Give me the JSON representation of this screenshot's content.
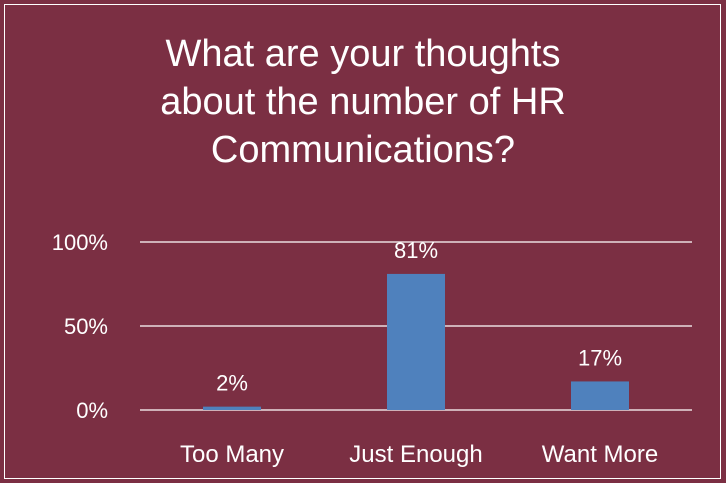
{
  "chart_data": {
    "type": "bar",
    "title_lines": [
      "What are your thoughts",
      "about the number of HR",
      "Communications?"
    ],
    "categories": [
      "Too Many",
      "Just Enough",
      "Want More"
    ],
    "values": [
      2,
      81,
      17
    ],
    "value_labels": [
      "2%",
      "81%",
      "17%"
    ],
    "y_ticks": [
      0,
      50,
      100
    ],
    "y_tick_labels": [
      "0%",
      "50%",
      "100%"
    ],
    "ylim": [
      0,
      100
    ],
    "grid": true,
    "bar_color": "#4f81bd",
    "background_color": "#7b2f43"
  }
}
